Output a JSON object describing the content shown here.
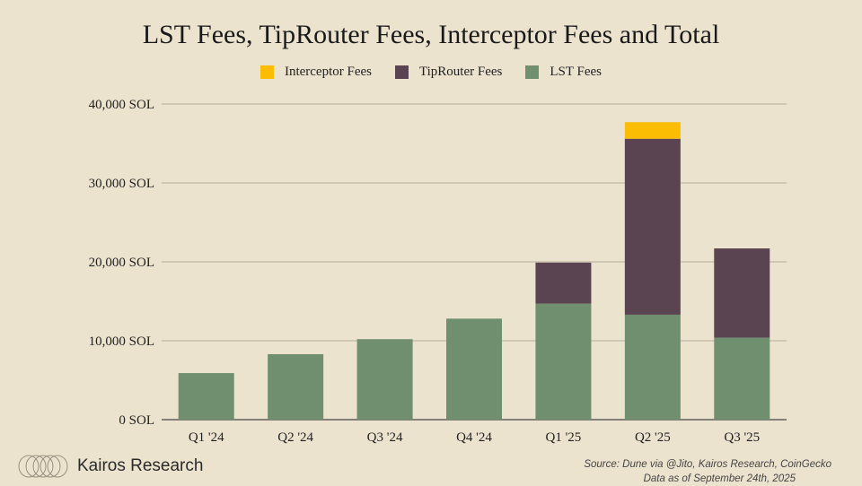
{
  "chart_data": {
    "type": "bar",
    "stacked": true,
    "title": "LST Fees, TipRouter Fees, Interceptor Fees and Total",
    "categories": [
      "Q1 '24",
      "Q2 '24",
      "Q3 '24",
      "Q4 '24",
      "Q1 '25",
      "Q2 '25",
      "Q3 '25"
    ],
    "series": [
      {
        "name": "LST Fees",
        "color": "#6f8f6f",
        "values": [
          5900,
          8300,
          10200,
          12800,
          14700,
          13300,
          10400
        ]
      },
      {
        "name": "TipRouter Fees",
        "color": "#5b4452",
        "values": [
          0,
          0,
          0,
          0,
          5200,
          22300,
          11300
        ]
      },
      {
        "name": "Interceptor Fees",
        "color": "#fbbc04",
        "values": [
          0,
          0,
          0,
          0,
          0,
          2100,
          0
        ]
      }
    ],
    "legend": [
      "Interceptor Fees",
      "TipRouter Fees",
      "LST Fees"
    ],
    "y_ticks": [
      "0 SOL",
      "10,000  SOL",
      "20,000  SOL",
      "30,000  SOL",
      "40,000  SOL"
    ],
    "y_tick_values": [
      0,
      10000,
      20000,
      30000,
      40000
    ],
    "ylim": [
      0,
      40000
    ],
    "xlabel": "",
    "ylabel": "",
    "grid": true
  },
  "branding": {
    "name": "Kairos Research"
  },
  "source": {
    "line1": "Source: Dune via @Jito, Kairos Research, CoinGecko",
    "line2": "Data as of September 24th, 2025"
  }
}
